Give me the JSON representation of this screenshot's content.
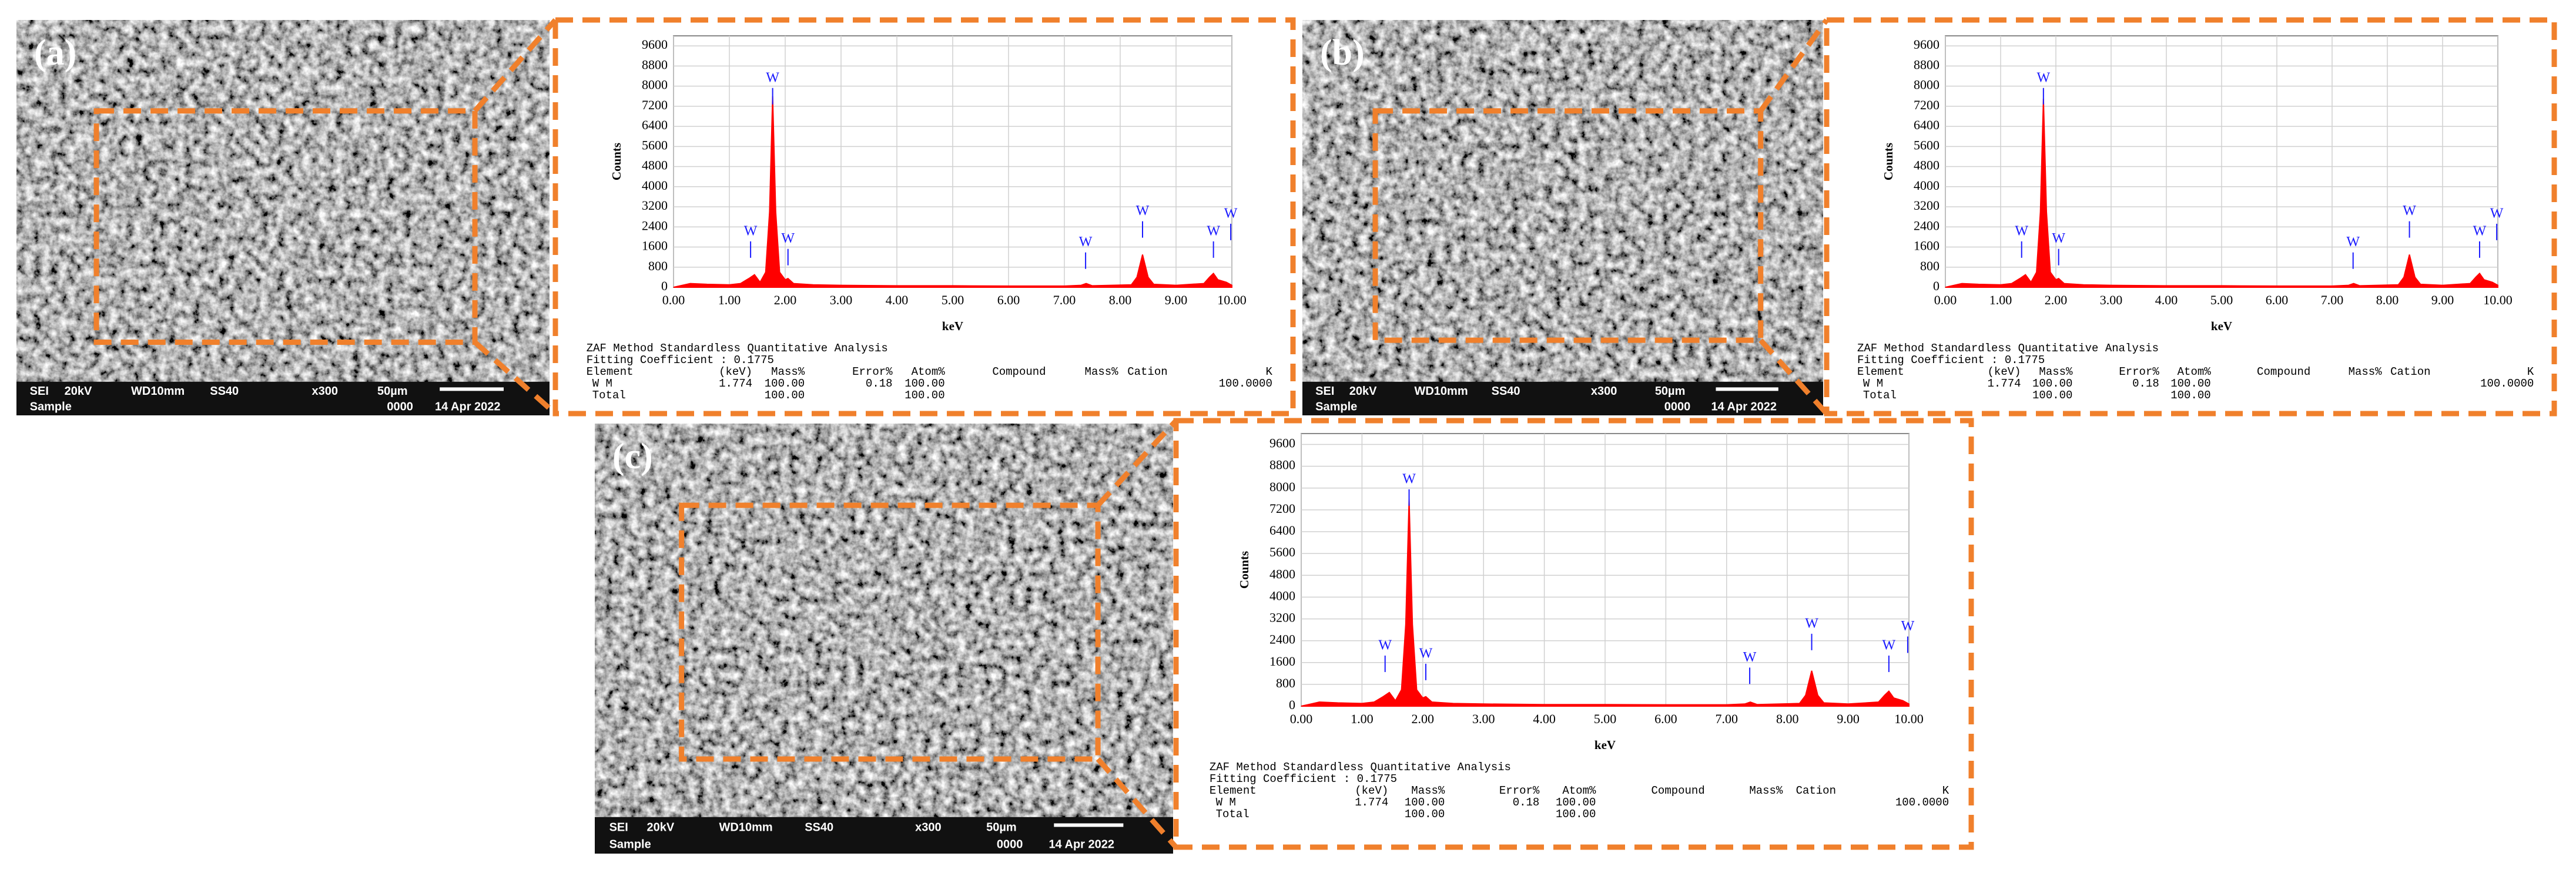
{
  "chart_data": [
    {
      "type": "area",
      "panel_label": "(a)",
      "xlabel": "keV",
      "ylabel": "Counts",
      "color": "#ff0000",
      "grid": true,
      "xlim": [
        0,
        10
      ],
      "ylim": [
        0,
        10000
      ],
      "xticks": [
        {
          "value": 0,
          "label": "0.00"
        },
        {
          "value": 1,
          "label": "1.00"
        },
        {
          "value": 2,
          "label": "2.00"
        },
        {
          "value": 3,
          "label": "3.00"
        },
        {
          "value": 4,
          "label": "4.00"
        },
        {
          "value": 5,
          "label": "5.00"
        },
        {
          "value": 6,
          "label": "6.00"
        },
        {
          "value": 7,
          "label": "7.00"
        },
        {
          "value": 8,
          "label": "8.00"
        },
        {
          "value": 9,
          "label": "9.00"
        },
        {
          "value": 10,
          "label": "10.00"
        }
      ],
      "yticks": [
        0,
        800,
        1600,
        2400,
        3200,
        4000,
        4800,
        5600,
        6400,
        7200,
        8000,
        8800,
        9600
      ],
      "x": [
        0,
        0.1,
        0.3,
        0.6,
        1.0,
        1.2,
        1.35,
        1.45,
        1.55,
        1.65,
        1.72,
        1.775,
        1.83,
        1.9,
        2.0,
        2.05,
        2.15,
        2.5,
        3,
        4,
        5,
        6,
        7,
        7.3,
        7.39,
        7.5,
        8.2,
        8.3,
        8.4,
        8.5,
        8.6,
        9.0,
        9.5,
        9.6,
        9.67,
        9.75,
        9.9,
        10
      ],
      "values": [
        0,
        50,
        150,
        120,
        100,
        150,
        350,
        500,
        200,
        600,
        3000,
        7600,
        3000,
        600,
        300,
        350,
        150,
        100,
        80,
        60,
        60,
        50,
        50,
        80,
        150,
        60,
        100,
        400,
        1300,
        400,
        120,
        80,
        150,
        400,
        550,
        300,
        200,
        80
      ],
      "annotations": [
        {
          "text": "W",
          "x": 1.38,
          "y": 2200
        },
        {
          "text": "W",
          "x": 1.775,
          "y": 8300
        },
        {
          "text": "W",
          "x": 2.05,
          "y": 1900
        },
        {
          "text": "W",
          "x": 7.38,
          "y": 1760
        },
        {
          "text": "W",
          "x": 8.4,
          "y": 3000
        },
        {
          "text": "W",
          "x": 9.67,
          "y": 2200
        },
        {
          "text": "W",
          "x": 9.98,
          "y": 2900
        }
      ],
      "sem_labels": {
        "top": [
          "SEI",
          "20kV",
          "WD10mm",
          "SS40",
          "x300",
          "50µm"
        ],
        "bottom": [
          "Sample",
          "0000",
          "14 Apr 2022"
        ]
      },
      "table": {
        "title": "ZAF Method Standardless Quantitative Analysis",
        "fitting": "Fitting Coefficient : 0.1775",
        "columns": [
          "Element",
          "(keV)",
          "Mass%",
          "Error%",
          "Atom%",
          "Compound",
          "Mass%",
          "Cation",
          "K"
        ],
        "rows": [
          [
            "W M",
            "1.774",
            "100.00",
            "0.18",
            "100.00",
            null,
            null,
            null,
            "100.0000"
          ],
          [
            "Total",
            null,
            "100.00",
            null,
            "100.00",
            null,
            null,
            null,
            null
          ]
        ]
      }
    },
    {
      "type": "area",
      "panel_label": "(b)",
      "xlabel": "keV",
      "ylabel": "Counts",
      "color": "#ff0000",
      "grid": true,
      "xlim": [
        0,
        10
      ],
      "ylim": [
        0,
        10000
      ],
      "xticks": [
        {
          "value": 0,
          "label": "0.00"
        },
        {
          "value": 1,
          "label": "1.00"
        },
        {
          "value": 2,
          "label": "2.00"
        },
        {
          "value": 3,
          "label": "3.00"
        },
        {
          "value": 4,
          "label": "4.00"
        },
        {
          "value": 5,
          "label": "5.00"
        },
        {
          "value": 6,
          "label": "6.00"
        },
        {
          "value": 7,
          "label": "7.00"
        },
        {
          "value": 8,
          "label": "8.00"
        },
        {
          "value": 9,
          "label": "9.00"
        },
        {
          "value": 10,
          "label": "10.00"
        }
      ],
      "yticks": [
        0,
        800,
        1600,
        2400,
        3200,
        4000,
        4800,
        5600,
        6400,
        7200,
        8000,
        8800,
        9600
      ],
      "x": [
        0,
        0.1,
        0.3,
        0.6,
        1.0,
        1.2,
        1.35,
        1.45,
        1.55,
        1.65,
        1.72,
        1.775,
        1.83,
        1.9,
        2.0,
        2.05,
        2.15,
        2.5,
        3,
        4,
        5,
        6,
        7,
        7.3,
        7.39,
        7.5,
        8.2,
        8.3,
        8.4,
        8.5,
        8.6,
        9.0,
        9.5,
        9.6,
        9.67,
        9.75,
        9.9,
        10
      ],
      "values": [
        0,
        50,
        150,
        120,
        100,
        150,
        350,
        500,
        200,
        600,
        3000,
        7500,
        3000,
        600,
        300,
        350,
        150,
        100,
        80,
        60,
        60,
        50,
        50,
        80,
        150,
        60,
        100,
        400,
        1300,
        400,
        120,
        80,
        150,
        400,
        550,
        300,
        200,
        80
      ],
      "annotations": [
        {
          "text": "W",
          "x": 1.38,
          "y": 2200
        },
        {
          "text": "W",
          "x": 1.775,
          "y": 8300
        },
        {
          "text": "W",
          "x": 2.05,
          "y": 1900
        },
        {
          "text": "W",
          "x": 7.38,
          "y": 1760
        },
        {
          "text": "W",
          "x": 8.4,
          "y": 3000
        },
        {
          "text": "W",
          "x": 9.67,
          "y": 2200
        },
        {
          "text": "W",
          "x": 9.98,
          "y": 2900
        }
      ],
      "sem_labels": {
        "top": [
          "SEI",
          "20kV",
          "WD10mm",
          "SS40",
          "x300",
          "50µm"
        ],
        "bottom": [
          "Sample",
          "0000",
          "14 Apr 2022"
        ]
      },
      "table": {
        "title": "ZAF Method Standardless Quantitative Analysis",
        "fitting": "Fitting Coefficient : 0.1775",
        "columns": [
          "Element",
          "(keV)",
          "Mass%",
          "Error%",
          "Atom%",
          "Compound",
          "Mass%",
          "Cation",
          "K"
        ],
        "rows": [
          [
            "W M",
            "1.774",
            "100.00",
            "0.18",
            "100.00",
            null,
            null,
            null,
            "100.0000"
          ],
          [
            "Total",
            null,
            "100.00",
            null,
            "100.00",
            null,
            null,
            null,
            null
          ]
        ]
      }
    },
    {
      "type": "area",
      "panel_label": "(c)",
      "xlabel": "keV",
      "ylabel": "Counts",
      "color": "#ff0000",
      "grid": true,
      "xlim": [
        0,
        10
      ],
      "ylim": [
        0,
        10000
      ],
      "xticks": [
        {
          "value": 0,
          "label": "0.00"
        },
        {
          "value": 1,
          "label": "1.00"
        },
        {
          "value": 2,
          "label": "2.00"
        },
        {
          "value": 3,
          "label": "3.00"
        },
        {
          "value": 4,
          "label": "4.00"
        },
        {
          "value": 5,
          "label": "5.00"
        },
        {
          "value": 6,
          "label": "6.00"
        },
        {
          "value": 7,
          "label": "7.00"
        },
        {
          "value": 8,
          "label": "8.00"
        },
        {
          "value": 9,
          "label": "9.00"
        },
        {
          "value": 10,
          "label": "10.00"
        }
      ],
      "yticks": [
        0,
        800,
        1600,
        2400,
        3200,
        4000,
        4800,
        5600,
        6400,
        7200,
        8000,
        8800,
        9600
      ],
      "x": [
        0,
        0.1,
        0.3,
        0.6,
        1.0,
        1.2,
        1.35,
        1.45,
        1.55,
        1.65,
        1.72,
        1.775,
        1.83,
        1.9,
        2.0,
        2.05,
        2.15,
        2.5,
        3,
        4,
        5,
        6,
        7,
        7.3,
        7.39,
        7.5,
        8.2,
        8.3,
        8.4,
        8.5,
        8.6,
        9.0,
        9.5,
        9.6,
        9.67,
        9.75,
        9.9,
        10
      ],
      "values": [
        0,
        50,
        150,
        120,
        100,
        150,
        350,
        500,
        200,
        600,
        3000,
        7600,
        3000,
        600,
        300,
        350,
        150,
        100,
        80,
        60,
        60,
        50,
        50,
        80,
        150,
        60,
        100,
        400,
        1300,
        400,
        120,
        80,
        150,
        400,
        550,
        300,
        200,
        80
      ],
      "annotations": [
        {
          "text": "W",
          "x": 1.38,
          "y": 2200
        },
        {
          "text": "W",
          "x": 1.775,
          "y": 8300
        },
        {
          "text": "W",
          "x": 2.05,
          "y": 1900
        },
        {
          "text": "W",
          "x": 7.38,
          "y": 1760
        },
        {
          "text": "W",
          "x": 8.4,
          "y": 3000
        },
        {
          "text": "W",
          "x": 9.67,
          "y": 2200
        },
        {
          "text": "W",
          "x": 9.98,
          "y": 2900
        }
      ],
      "sem_labels": {
        "top": [
          "SEI",
          "20kV",
          "WD10mm",
          "SS40",
          "x300",
          "50µm"
        ],
        "bottom": [
          "Sample",
          "0000",
          "14 Apr 2022"
        ]
      },
      "table": {
        "title": "ZAF Method Standardless Quantitative Analysis",
        "fitting": "Fitting Coefficient : 0.1775",
        "columns": [
          "Element",
          "(keV)",
          "Mass%",
          "Error%",
          "Atom%",
          "Compound",
          "Mass%",
          "Cation",
          "K"
        ],
        "rows": [
          [
            "W M",
            "1.774",
            "100.00",
            "0.18",
            "100.00",
            null,
            null,
            null,
            "100.0000"
          ],
          [
            "Total",
            null,
            "100.00",
            null,
            "100.00",
            null,
            null,
            null,
            null
          ]
        ]
      }
    }
  ]
}
